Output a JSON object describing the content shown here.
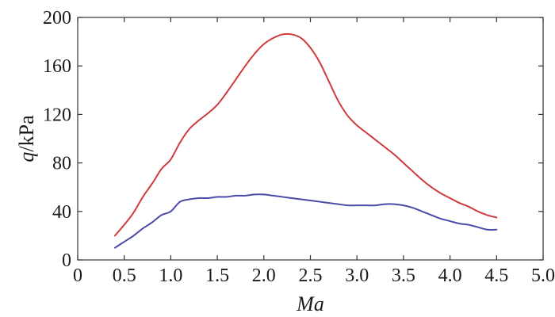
{
  "chart_data": {
    "type": "line",
    "xlabel": "Ma",
    "ylabel": {
      "italic": "q",
      "rest": "/kPa"
    },
    "xlim": [
      0,
      5.0
    ],
    "ylim": [
      0,
      200
    ],
    "x_ticks": [
      "0",
      "0.5",
      "1.0",
      "1.5",
      "2.0",
      "2.5",
      "3.0",
      "3.5",
      "4.0",
      "4.5",
      "5.0"
    ],
    "y_ticks": [
      "0",
      "40",
      "80",
      "120",
      "160",
      "200"
    ],
    "grid": false,
    "legend": "none",
    "series": [
      {
        "color": "#d03a3c",
        "x": [
          0.4,
          0.5,
          0.6,
          0.7,
          0.8,
          0.9,
          1.0,
          1.1,
          1.2,
          1.3,
          1.4,
          1.5,
          1.6,
          1.7,
          1.8,
          1.9,
          2.0,
          2.1,
          2.2,
          2.3,
          2.4,
          2.5,
          2.6,
          2.7,
          2.8,
          2.9,
          3.0,
          3.1,
          3.2,
          3.3,
          3.4,
          3.5,
          3.6,
          3.7,
          3.8,
          3.9,
          4.0,
          4.1,
          4.2,
          4.3,
          4.4,
          4.5
        ],
        "y": [
          20,
          29,
          39,
          52,
          63,
          75,
          83,
          97,
          108,
          115,
          121,
          128,
          138,
          149,
          160,
          170,
          178,
          183,
          186,
          186,
          183,
          175,
          163,
          147,
          131,
          119,
          111,
          105,
          99,
          93,
          87,
          80,
          73,
          66,
          60,
          55,
          51,
          47,
          44,
          40,
          37,
          35
        ]
      },
      {
        "color": "#4a4aa8",
        "x": [
          0.4,
          0.5,
          0.6,
          0.7,
          0.8,
          0.9,
          1.0,
          1.1,
          1.2,
          1.3,
          1.4,
          1.5,
          1.6,
          1.7,
          1.8,
          1.9,
          2.0,
          2.1,
          2.2,
          2.3,
          2.4,
          2.5,
          2.6,
          2.7,
          2.8,
          2.9,
          3.0,
          3.1,
          3.2,
          3.3,
          3.4,
          3.5,
          3.6,
          3.7,
          3.8,
          3.9,
          4.0,
          4.1,
          4.2,
          4.3,
          4.4,
          4.5
        ],
        "y": [
          10,
          15,
          20,
          26,
          31,
          37,
          40,
          48,
          50,
          51,
          51,
          52,
          52,
          53,
          53,
          54,
          54,
          53,
          52,
          51,
          50,
          49,
          48,
          47,
          46,
          45,
          45,
          45,
          45,
          46,
          46,
          45,
          43,
          40,
          37,
          34,
          32,
          30,
          29,
          27,
          25,
          25
        ]
      }
    ]
  }
}
